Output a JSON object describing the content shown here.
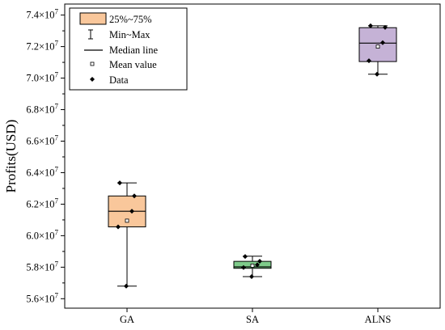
{
  "chart_data": {
    "type": "box",
    "ylabel": "Profits(USD)",
    "categories": [
      "GA",
      "SA",
      "ALNS"
    ],
    "y_tick_labels": [
      "5.6",
      "5.8",
      "6.0",
      "6.2",
      "6.4",
      "6.6",
      "6.8",
      "7.0",
      "7.2",
      "7.4"
    ],
    "y_tick_values": [
      56000000,
      58000000,
      60000000,
      62000000,
      64000000,
      66000000,
      68000000,
      70000000,
      72000000,
      74000000
    ],
    "y_tick_exponent": "7",
    "ylim": [
      55400000,
      74700000
    ],
    "grid": false,
    "legend_position": "top-left",
    "legend": {
      "box": "25%~75%",
      "whisker": "Min~Max",
      "median": "Median line",
      "mean": "Mean value",
      "data": "Data"
    },
    "series": [
      {
        "category": "GA",
        "color": "#f9c79b",
        "min": 56800000,
        "q1": 60560000,
        "median": 61550000,
        "q3": 62520000,
        "max": 63350000,
        "mean": 60950000,
        "points": [
          56800000,
          60560000,
          61550000,
          62520000,
          63350000
        ]
      },
      {
        "category": "SA",
        "color": "#7ecb8a",
        "min": 57400000,
        "q1": 57930000,
        "median": 58020000,
        "q3": 58370000,
        "max": 58700000,
        "mean": 58100000,
        "points": [
          57400000,
          57980000,
          58150000,
          58380000,
          58680000
        ]
      },
      {
        "category": "ALNS",
        "color": "#c5b2d6",
        "min": 70250000,
        "q1": 71050000,
        "median": 72220000,
        "q3": 73200000,
        "max": 73320000,
        "mean": 72000000,
        "points": [
          70250000,
          71100000,
          72250000,
          73220000,
          73320000
        ]
      }
    ]
  }
}
